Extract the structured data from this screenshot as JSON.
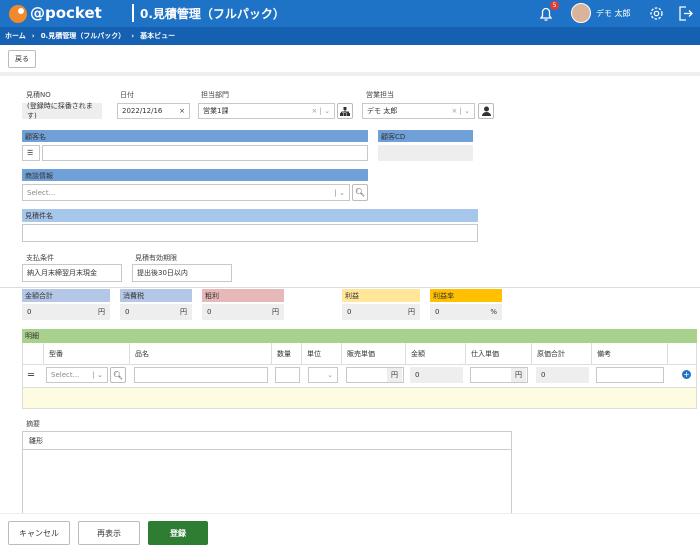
{
  "header": {
    "logo": "@pocket",
    "title": "0.見積管理（フルパック）",
    "notification_count": 5,
    "user": "デモ 太郎"
  },
  "breadcrumb": [
    "ホーム",
    "0.見積管理（フルパック）",
    "基本ビュー"
  ],
  "toolbar": {
    "back": "戻る"
  },
  "fields": {
    "estimate_no": {
      "label": "見積NO",
      "value": "(登録時に採番されます)"
    },
    "date": {
      "label": "日付",
      "value": "2022/12/16"
    },
    "department": {
      "label": "担当部門",
      "value": "営業1課"
    },
    "sales_rep": {
      "label": "営業担当",
      "value": "デモ 太郎"
    },
    "customer_name": {
      "label": "顧客名"
    },
    "customer_cd": {
      "label": "顧客CD"
    },
    "deal": {
      "label": "商談情報",
      "placeholder": "Select..."
    },
    "subject": {
      "label": "見積件名"
    },
    "payment_terms": {
      "label": "支払条件",
      "value": "納入月末締翌月末現金"
    },
    "validity": {
      "label": "見積有効期限",
      "value": "提出後30日以内"
    }
  },
  "summary": [
    {
      "label": "金額合計",
      "value": 0,
      "unit": "円"
    },
    {
      "label": "消費税",
      "value": 0,
      "unit": "円"
    },
    {
      "label": "粗利",
      "value": 0,
      "unit": "円"
    },
    {
      "label": "利益",
      "value": 0,
      "unit": "円"
    },
    {
      "label": "利益率",
      "value": 0,
      "unit": "%"
    }
  ],
  "details": {
    "title": "明細",
    "columns": [
      "型番",
      "品名",
      "数量",
      "単位",
      "販売単価",
      "金額",
      "仕入単価",
      "原価合計",
      "備考"
    ],
    "row": {
      "model_placeholder": "Select...",
      "unit_price_unit": "円",
      "amount": 0,
      "cost_unit": "円",
      "cost_total": 0
    }
  },
  "remarks": {
    "label": "摘要",
    "template": "雛形"
  },
  "buttons": {
    "cancel": "キャンセル",
    "refresh": "再表示",
    "submit": "登録"
  }
}
